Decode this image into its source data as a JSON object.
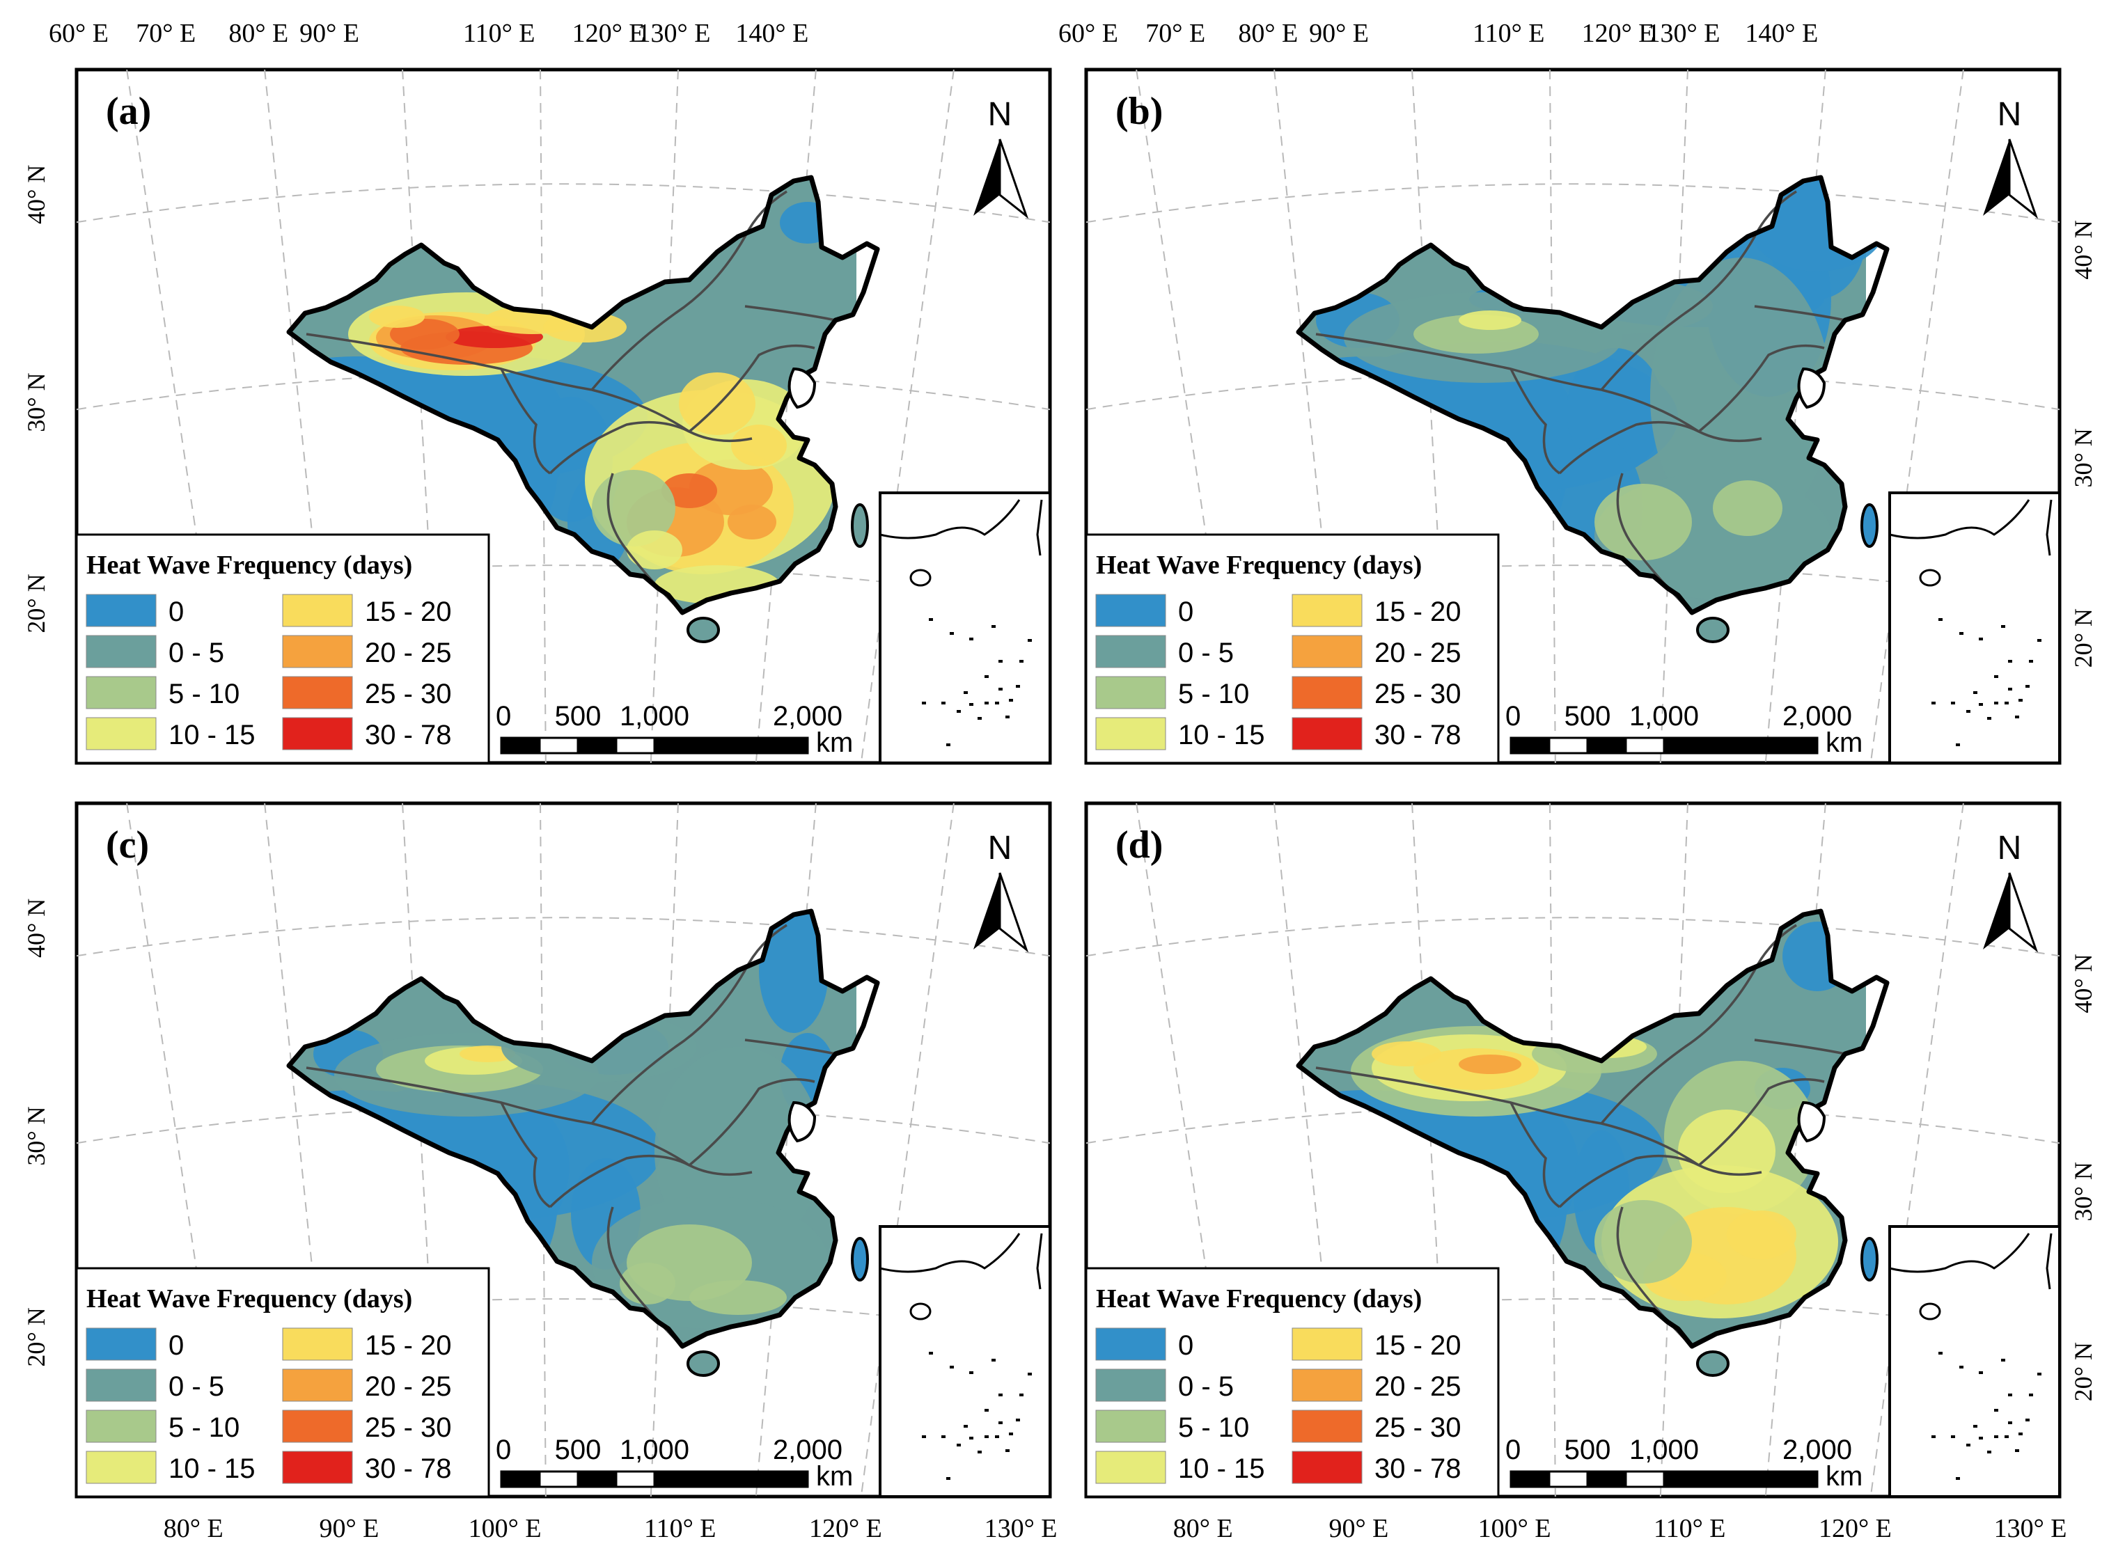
{
  "figure": {
    "legend_title": "Heat Wave Frequency (days)",
    "legend_classes": [
      {
        "label": "0",
        "color": "#3290c9"
      },
      {
        "label": "0 - 5",
        "color": "#6b9f9c"
      },
      {
        "label": "5 - 10",
        "color": "#a8c98b"
      },
      {
        "label": "10 - 15",
        "color": "#e6eb7a"
      },
      {
        "label": "15 - 20",
        "color": "#f9dc5c"
      },
      {
        "label": "20 - 25",
        "color": "#f5a23e"
      },
      {
        "label": "25 - 30",
        "color": "#ee6a2a"
      },
      {
        "label": "30 - 78",
        "color": "#e1221c"
      }
    ],
    "scale_bar": {
      "labels": [
        "0",
        "500",
        "1,000",
        "2,000"
      ],
      "unit": "km"
    },
    "north_label": "N",
    "top_lon_labels": [
      "60° E",
      "70° E",
      "80° E",
      "90° E",
      "110° E",
      "120° E",
      "130° E",
      "140° E"
    ],
    "bottom_lon_labels": [
      "80° E",
      "90° E",
      "100° E",
      "110° E",
      "120° E",
      "130° E"
    ],
    "left_lat_labels": [
      "40° N",
      "30° N",
      "20° N"
    ],
    "right_lat_labels": [
      "40° N",
      "30° N",
      "20° N"
    ]
  },
  "panels": [
    {
      "id": "a",
      "label": "(a)"
    },
    {
      "id": "b",
      "label": "(b)"
    },
    {
      "id": "c",
      "label": "(c)"
    },
    {
      "id": "d",
      "label": "(d)"
    }
  ]
}
